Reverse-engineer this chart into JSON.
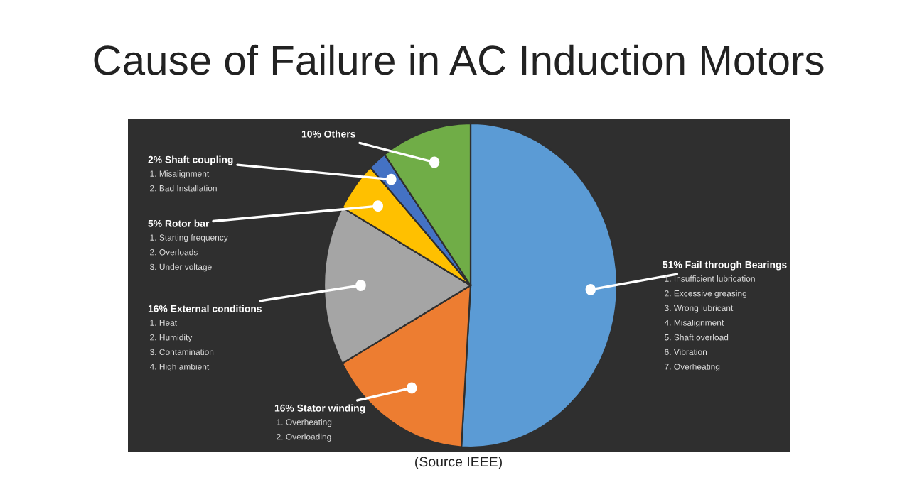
{
  "chart_data": {
    "type": "pie",
    "title": "Cause of Failure in AC Induction Motors",
    "categories": [
      "Fail through Bearings",
      "Stator winding",
      "External conditions",
      "Rotor bar",
      "Shaft coupling",
      "Others"
    ],
    "values": [
      51,
      16,
      16,
      5,
      2,
      10
    ],
    "value_labels": [
      "51%",
      "16%",
      "16%",
      "5%",
      "2%",
      "10%"
    ],
    "colors": [
      "#5b9bd5",
      "#ed7d31",
      "#a5a5a5",
      "#ffc000",
      "#4472c4",
      "#70ad47"
    ],
    "annotations": [
      {
        "text": "1. Insufficient lubrication\n2. Excessive greasing\n3. Wrong lubricant\n4. Misalignment\n5. Shaft overload\n6. Vibration\n7. Overheating",
        "x": "Fail through Bearings"
      },
      {
        "text": "1. Overheating\n2. Overloading",
        "x": "Stator winding"
      },
      {
        "text": "1. Heat\n2. Humidity\n3. Contamination\n4. High ambient",
        "x": "External conditions"
      },
      {
        "text": "1. Starting frequency\n2. Overloads\n3. Under voltage",
        "x": "Rotor bar"
      },
      {
        "text": "1. Misalignment\n2. Bad Installation",
        "x": "Shaft coupling"
      },
      "(Source IEEE)"
    ]
  }
}
